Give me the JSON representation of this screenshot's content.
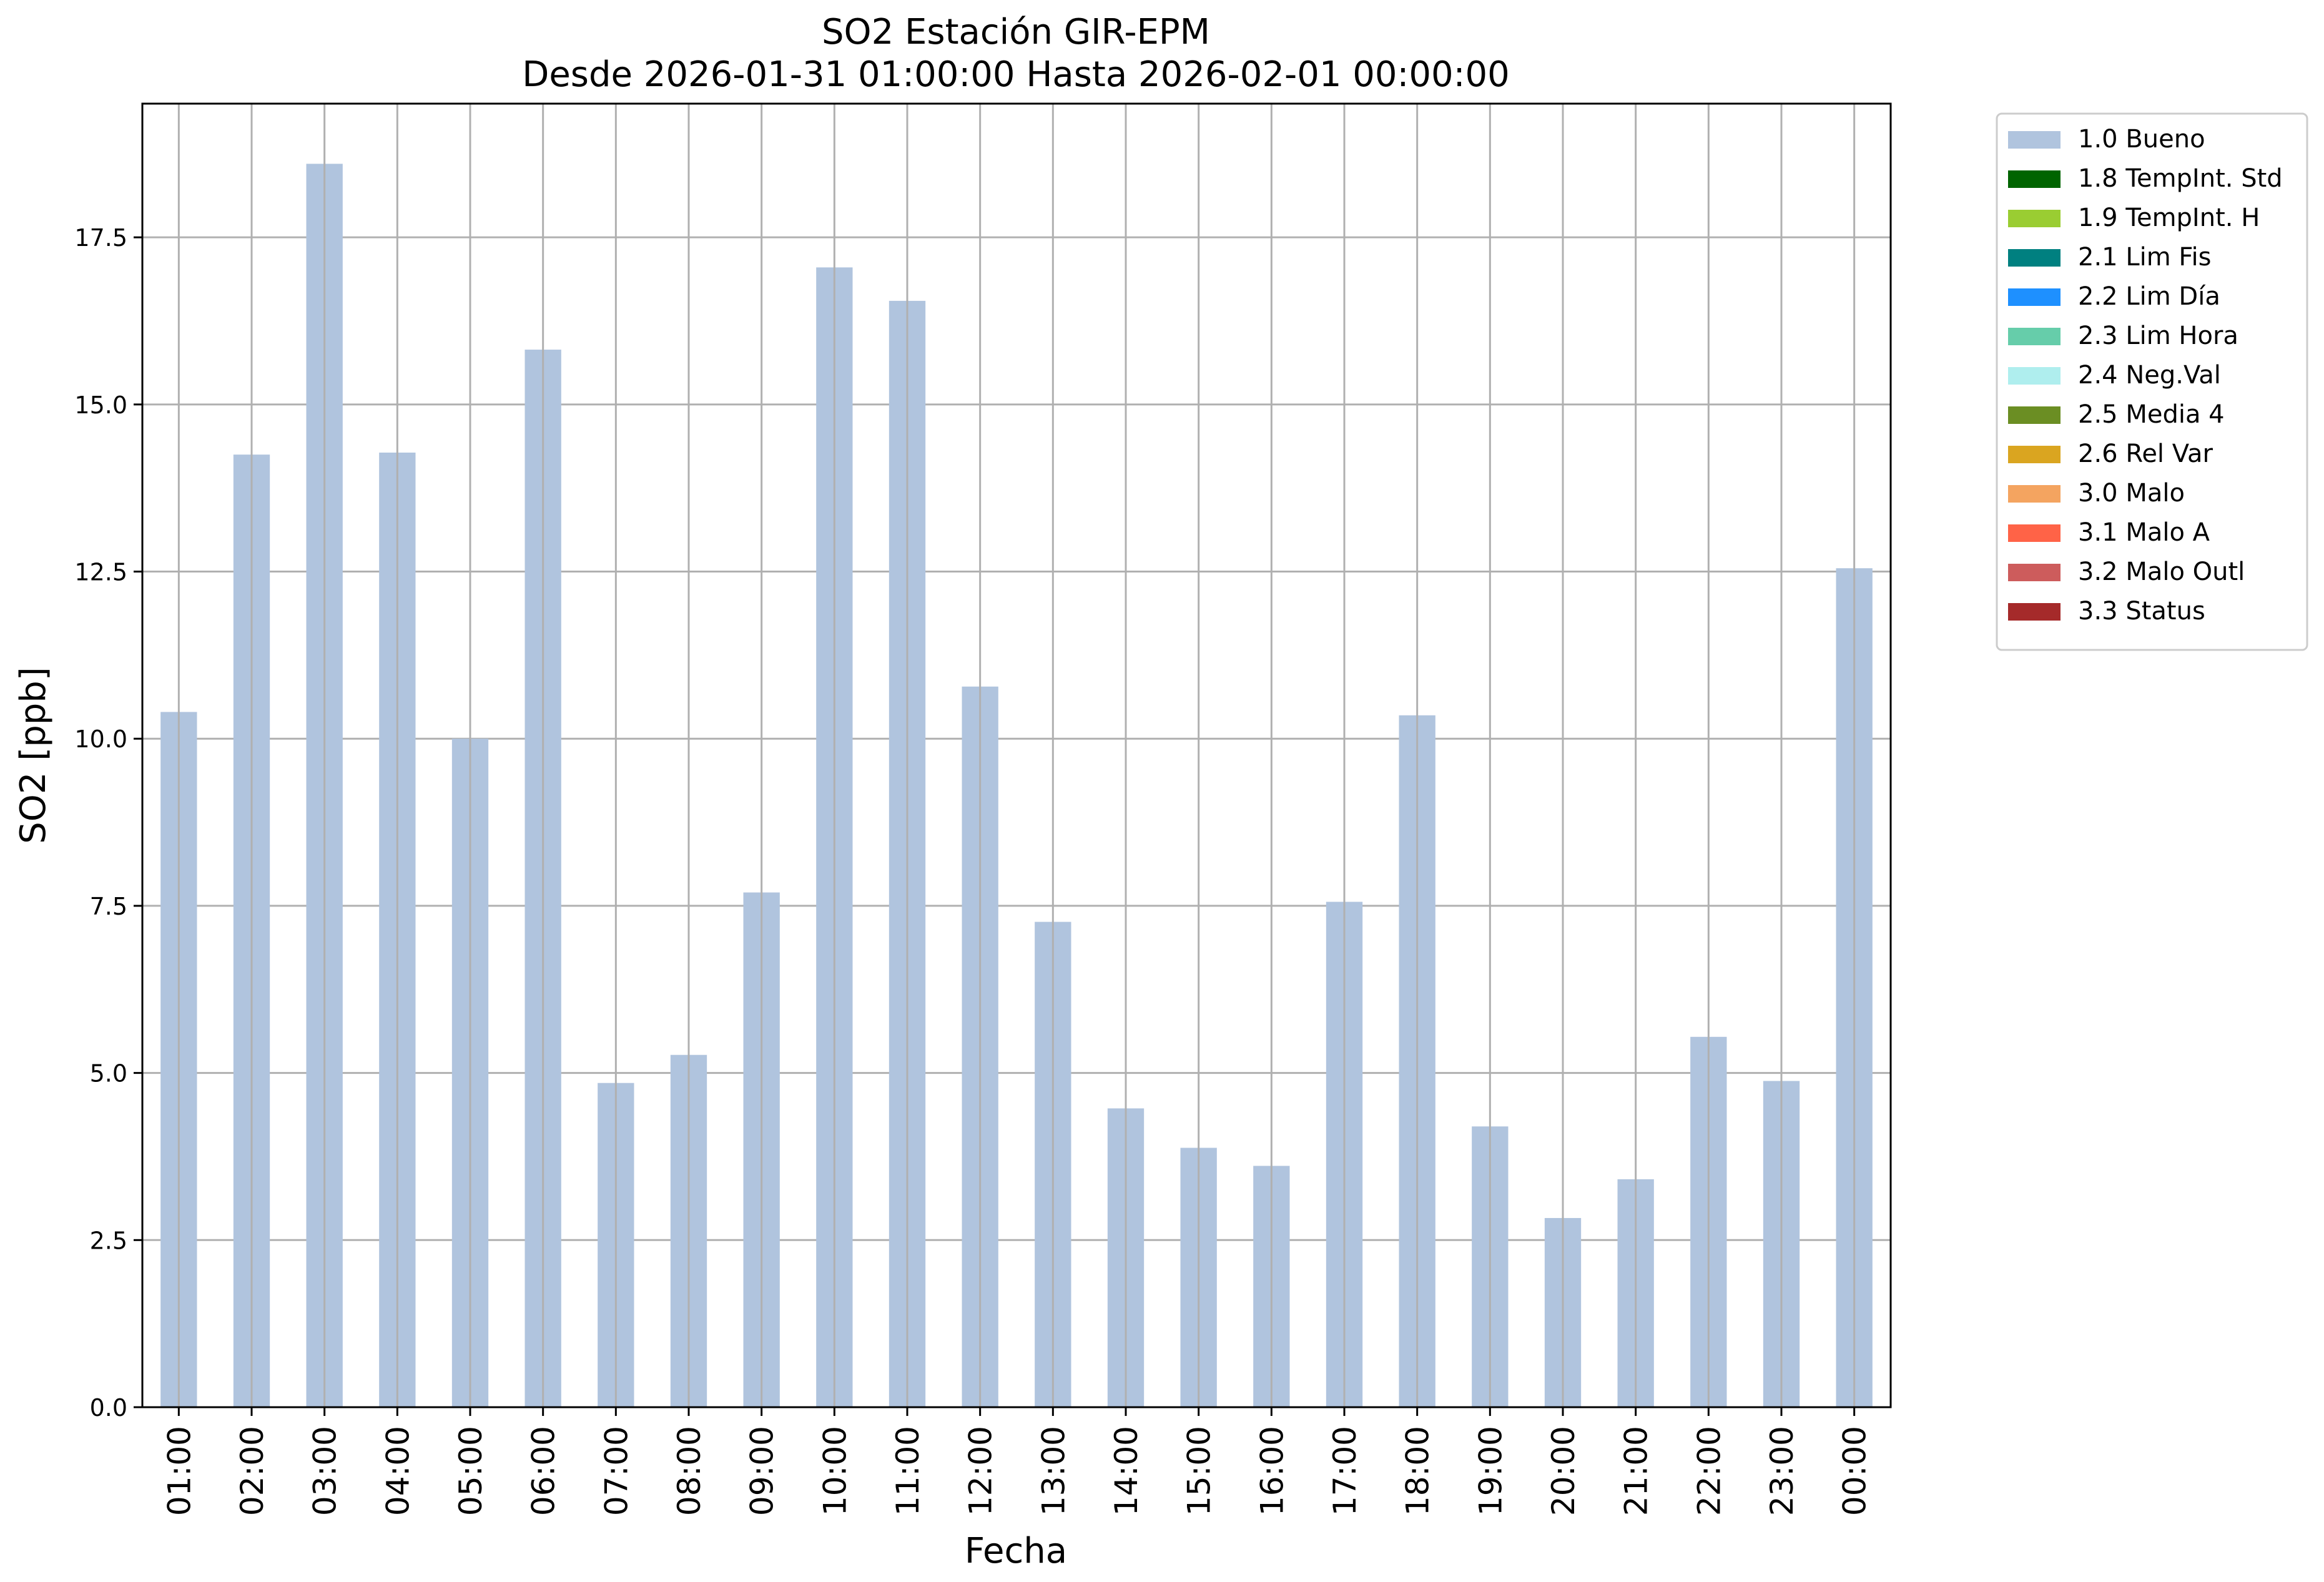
{
  "chart_data": {
    "type": "bar",
    "title": "SO2 Estación GIR-EPM",
    "subtitle": "Desde 2026-01-31 01:00:00 Hasta 2026-02-01 00:00:00",
    "xlabel": "Fecha",
    "ylabel": "SO2 [ppb]",
    "ylim": [
      0,
      19.5
    ],
    "yticks": [
      "0.0",
      "2.5",
      "5.0",
      "7.5",
      "10.0",
      "12.5",
      "15.0",
      "17.5"
    ],
    "grid": true,
    "legend_position": "outside-top-right",
    "categories": [
      "01:00",
      "02:00",
      "03:00",
      "04:00",
      "05:00",
      "06:00",
      "07:00",
      "08:00",
      "09:00",
      "10:00",
      "11:00",
      "12:00",
      "13:00",
      "14:00",
      "15:00",
      "16:00",
      "17:00",
      "18:00",
      "19:00",
      "20:00",
      "21:00",
      "22:00",
      "23:00",
      "00:00"
    ],
    "series": [
      {
        "name": "1.0 Bueno",
        "color": "#b0c4de",
        "values": [
          10.4,
          14.25,
          18.6,
          14.28,
          10.0,
          15.82,
          4.85,
          5.27,
          7.7,
          17.05,
          16.55,
          10.78,
          7.26,
          4.47,
          3.88,
          3.61,
          7.56,
          10.35,
          4.2,
          2.83,
          3.41,
          5.54,
          4.88,
          12.55
        ]
      }
    ],
    "legend": [
      {
        "label": "1.0 Bueno",
        "color": "#b0c4de"
      },
      {
        "label": "1.8 TempInt. Std",
        "color": "#006400"
      },
      {
        "label": "1.9 TempInt. H",
        "color": "#9acd32"
      },
      {
        "label": "2.1 Lim Fis",
        "color": "#008080"
      },
      {
        "label": "2.2 Lim Día",
        "color": "#1e90ff"
      },
      {
        "label": "2.3 Lim Hora",
        "color": "#66cdaa"
      },
      {
        "label": "2.4 Neg.Val",
        "color": "#afeeee"
      },
      {
        "label": "2.5 Media 4",
        "color": "#6b8e23"
      },
      {
        "label": "2.6 Rel Var",
        "color": "#daa520"
      },
      {
        "label": "3.0 Malo",
        "color": "#f4a460"
      },
      {
        "label": "3.1 Malo A",
        "color": "#ff6347"
      },
      {
        "label": "3.2 Malo Outl",
        "color": "#cd5c5c"
      },
      {
        "label": "3.3 Status",
        "color": "#a52a2a"
      }
    ]
  }
}
